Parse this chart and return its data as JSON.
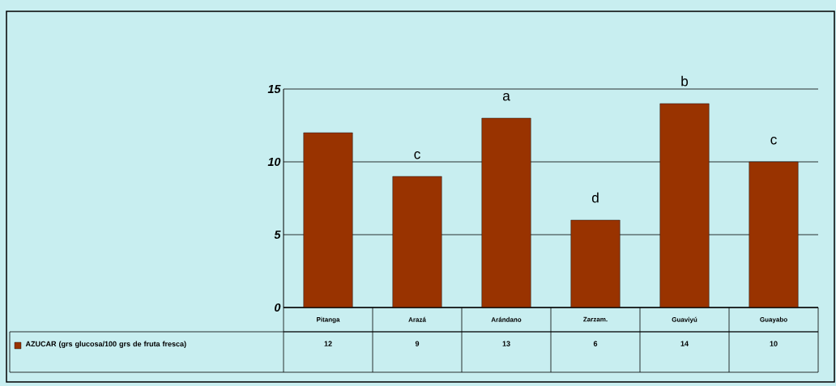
{
  "chart_data": {
    "type": "bar",
    "categories": [
      "Pitanga",
      "Arazá",
      "Arándano",
      "Zarzam.",
      "Guaviyú",
      "Guayabo"
    ],
    "series": [
      {
        "name": "AZUCAR (grs glucosa/100 grs de fruta fresca)",
        "color": "#993300",
        "values": [
          12,
          9,
          13,
          6,
          14,
          10
        ]
      }
    ],
    "ylim": [
      0,
      15
    ],
    "yticks": [
      0,
      5,
      10,
      15
    ],
    "grid": "y",
    "legend": "bottom",
    "data_labels": true,
    "annotations": [
      {
        "text": "c",
        "x": "Arazá",
        "y": 9
      },
      {
        "text": "a",
        "x": "Arándano",
        "y": 13
      },
      {
        "text": "d",
        "x": "Zarzam.",
        "y": 6
      },
      {
        "text": "b",
        "x": "Guaviyú",
        "y": 14
      },
      {
        "text": "c",
        "x": "Guayabo",
        "y": 10
      }
    ]
  }
}
